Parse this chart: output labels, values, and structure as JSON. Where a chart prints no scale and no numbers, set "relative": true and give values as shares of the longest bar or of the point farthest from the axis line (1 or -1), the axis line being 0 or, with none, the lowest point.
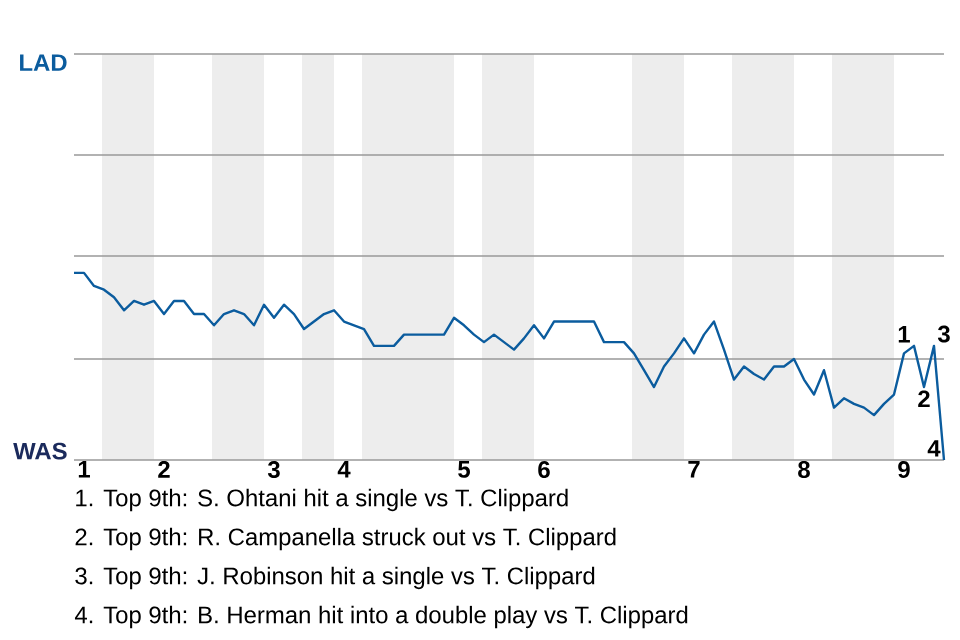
{
  "chart_data": {
    "type": "line",
    "relative": true,
    "categories": [
      null,
      "1",
      null,
      null,
      null,
      null,
      null,
      null,
      null,
      "2",
      null,
      null,
      null,
      null,
      null,
      null,
      null,
      null,
      null,
      null,
      "3",
      null,
      null,
      null,
      null,
      null,
      null,
      "4",
      null,
      null,
      null,
      null,
      null,
      null,
      null,
      null,
      null,
      null,
      null,
      "5",
      null,
      null,
      null,
      null,
      null,
      null,
      null,
      "6",
      null,
      null,
      null,
      null,
      null,
      null,
      null,
      null,
      null,
      null,
      null,
      null,
      null,
      null,
      "7",
      null,
      null,
      null,
      null,
      null,
      null,
      null,
      null,
      null,
      null,
      "8",
      null,
      null,
      null,
      null,
      null,
      null,
      null,
      null,
      null,
      "9",
      null,
      null,
      null,
      null
    ],
    "series": [
      {
        "color": "#0b5c9e",
        "values": [
          1,
          1,
          0.93,
          0.91,
          0.87,
          0.8,
          0.85,
          0.83,
          0.85,
          0.78,
          0.85,
          0.85,
          0.78,
          0.78,
          0.72,
          0.78,
          0.8,
          0.78,
          0.72,
          0.83,
          0.76,
          0.83,
          0.78,
          0.7,
          0.74,
          0.78,
          0.8,
          0.74,
          0.72,
          0.7,
          0.61,
          0.61,
          0.61,
          0.67,
          0.67,
          0.67,
          0.67,
          0.67,
          0.76,
          0.72,
          0.67,
          0.63,
          0.67,
          0.63,
          0.59,
          0.65,
          0.72,
          0.65,
          0.74,
          0.74,
          0.74,
          0.74,
          0.74,
          0.63,
          0.63,
          0.63,
          0.57,
          0.48,
          0.39,
          0.5,
          0.57,
          0.65,
          0.57,
          0.67,
          0.74,
          0.59,
          0.43,
          0.5,
          0.46,
          0.43,
          0.5,
          0.5,
          0.54,
          0.43,
          0.35,
          0.48,
          0.28,
          0.33,
          0.3,
          0.28,
          0.24,
          0.3,
          0.35,
          0.57,
          0.61,
          0.39,
          0.61,
          0
        ]
      }
    ],
    "ref_lines": [
      {
        "axis": "y",
        "value": 0.54,
        "color": "#999999"
      },
      {
        "axis": "y",
        "value": 1.09,
        "color": "#999999"
      },
      {
        "axis": "y",
        "value": 1.63,
        "color": "#999999"
      },
      {
        "axis": "y",
        "value": 2.17,
        "label": "LAD",
        "color": "#999999"
      }
    ],
    "annotations": [
      "WAS",
      {
        "text": "1",
        "y": 0.61
      },
      {
        "text": "2",
        "y": 0.39
      },
      {
        "text": "3",
        "y": 0.61
      },
      {
        "text": "4",
        "y": 0
      },
      "1. Top 9th: S. Ohtani hit a single vs T. Clippard",
      "2. Top 9th: R. Campanella struck out vs T. Clippard",
      "3. Top 9th: J. Robinson hit a single vs T. Clippard",
      "4. Top 9th: B. Herman hit into a double play vs T. Clippard"
    ]
  }
}
